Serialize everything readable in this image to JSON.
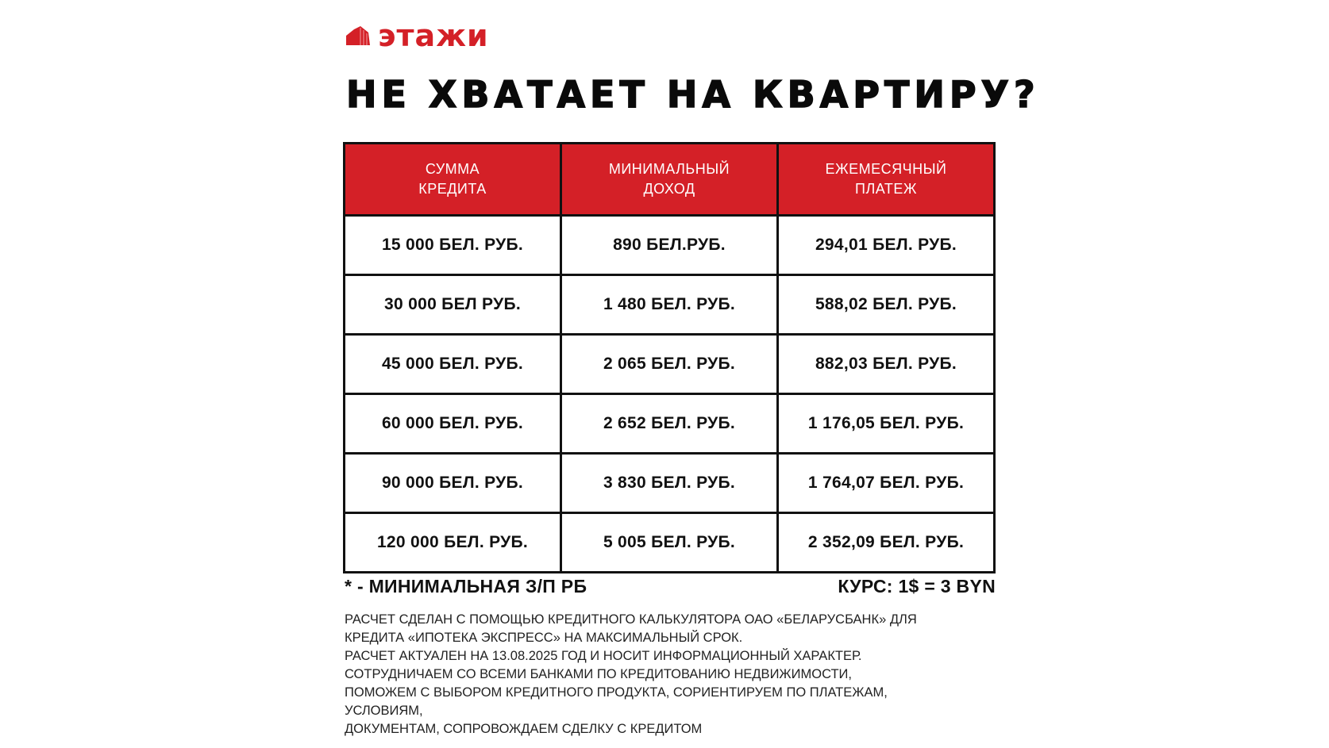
{
  "logo": {
    "text": "этажи",
    "icon": "building-icon",
    "brand_color": "#d42027"
  },
  "title": "НЕ ХВАТАЕТ НА КВАРТИРУ?",
  "table": {
    "header_color": "#d42027",
    "headers": [
      [
        "СУММА",
        "КРЕДИТА"
      ],
      [
        "МИНИМАЛЬНЫЙ",
        "ДОХОД"
      ],
      [
        "ЕЖЕМЕСЯЧНЫЙ",
        "ПЛАТЕЖ"
      ]
    ],
    "rows": [
      [
        "15 000 БЕЛ. РУБ.",
        "890 БЕЛ.РУБ.",
        "294,01 БЕЛ. РУБ."
      ],
      [
        "30 000 БЕЛ РУБ.",
        "1 480 БЕЛ. РУБ.",
        "588,02 БЕЛ. РУБ."
      ],
      [
        "45 000 БЕЛ. РУБ.",
        "2 065 БЕЛ. РУБ.",
        "882,03 БЕЛ. РУБ."
      ],
      [
        "60 000 БЕЛ. РУБ.",
        "2 652 БЕЛ. РУБ.",
        "1 176,05 БЕЛ. РУБ."
      ],
      [
        "90 000 БЕЛ. РУБ.",
        "3 830 БЕЛ. РУБ.",
        "1 764,07 БЕЛ. РУБ."
      ],
      [
        "120 000 БЕЛ. РУБ.",
        "5 005 БЕЛ. РУБ.",
        "2 352,09 БЕЛ. РУБ."
      ]
    ]
  },
  "notes": {
    "min_wage": "* - МИНИМАЛЬНАЯ З/П РБ",
    "rate": "КУРС: 1$ = 3 BYN"
  },
  "disclaimer": [
    "РАСЧЕТ СДЕЛАН С ПОМОЩЬЮ КРЕДИТНОГО КАЛЬКУЛЯТОРА ОАО «БЕЛАРУСБАНК» ДЛЯ",
    "КРЕДИТА «ИПОТЕКА ЭКСПРЕСС» НА МАКСИМАЛЬНЫЙ СРОК.",
    "РАСЧЕТ АКТУАЛЕН НА 13.08.2025 ГОД И НОСИТ ИНФОРМАЦИОННЫЙ ХАРАКТЕР.",
    "СОТРУДНИЧАЕМ СО ВСЕМИ БАНКАМИ ПО КРЕДИТОВАНИЮ НЕДВИЖИМОСТИ,",
    "ПОМОЖЕМ С ВЫБОРОМ КРЕДИТНОГО ПРОДУКТА, СОРИЕНТИРУЕМ ПО ПЛАТЕЖАМ,",
    "УСЛОВИЯМ,",
    "ДОКУМЕНТАМ, СОПРОВОЖДАЕМ СДЕЛКУ С КРЕДИТОМ"
  ]
}
